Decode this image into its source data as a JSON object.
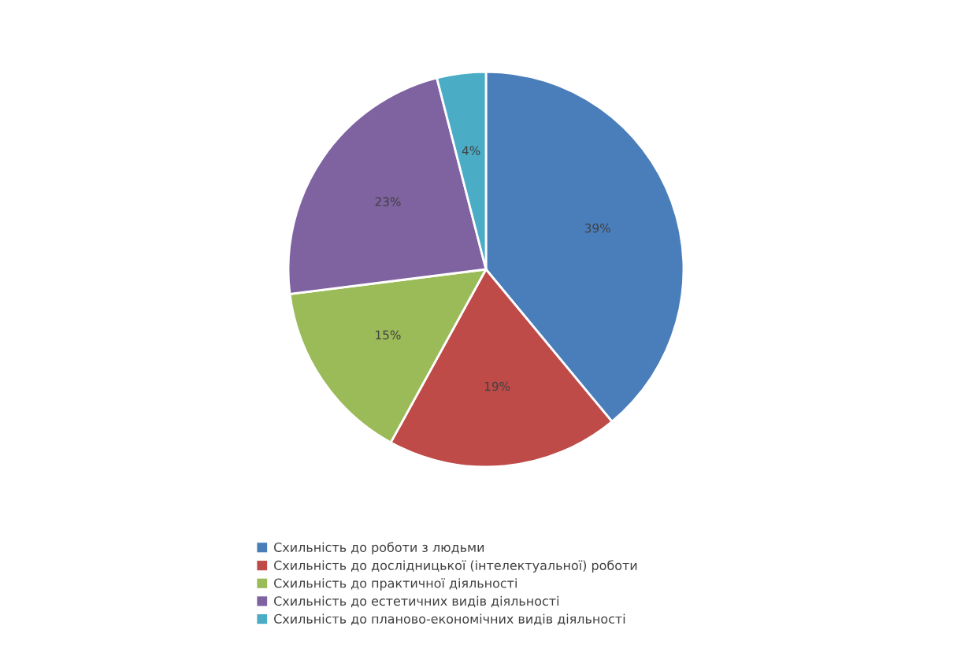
{
  "chart_data": {
    "type": "pie",
    "categories": [
      "Схильність до роботи з людьми",
      "Схильність до дослідницької (інтелектуальної) роботи",
      "Схильність до практичної діяльності",
      "Схильність до естетичних видів діяльності",
      "Схильність до планово-економічних видів діяльності"
    ],
    "values": [
      39,
      19,
      15,
      23,
      4
    ],
    "value_labels": [
      "39%",
      "19%",
      "15%",
      "23%",
      "4%"
    ],
    "colors": [
      "#4a7ebb",
      "#be4b48",
      "#9bbb59",
      "#7f63a1",
      "#4bacc6"
    ],
    "legend": "bottom"
  }
}
